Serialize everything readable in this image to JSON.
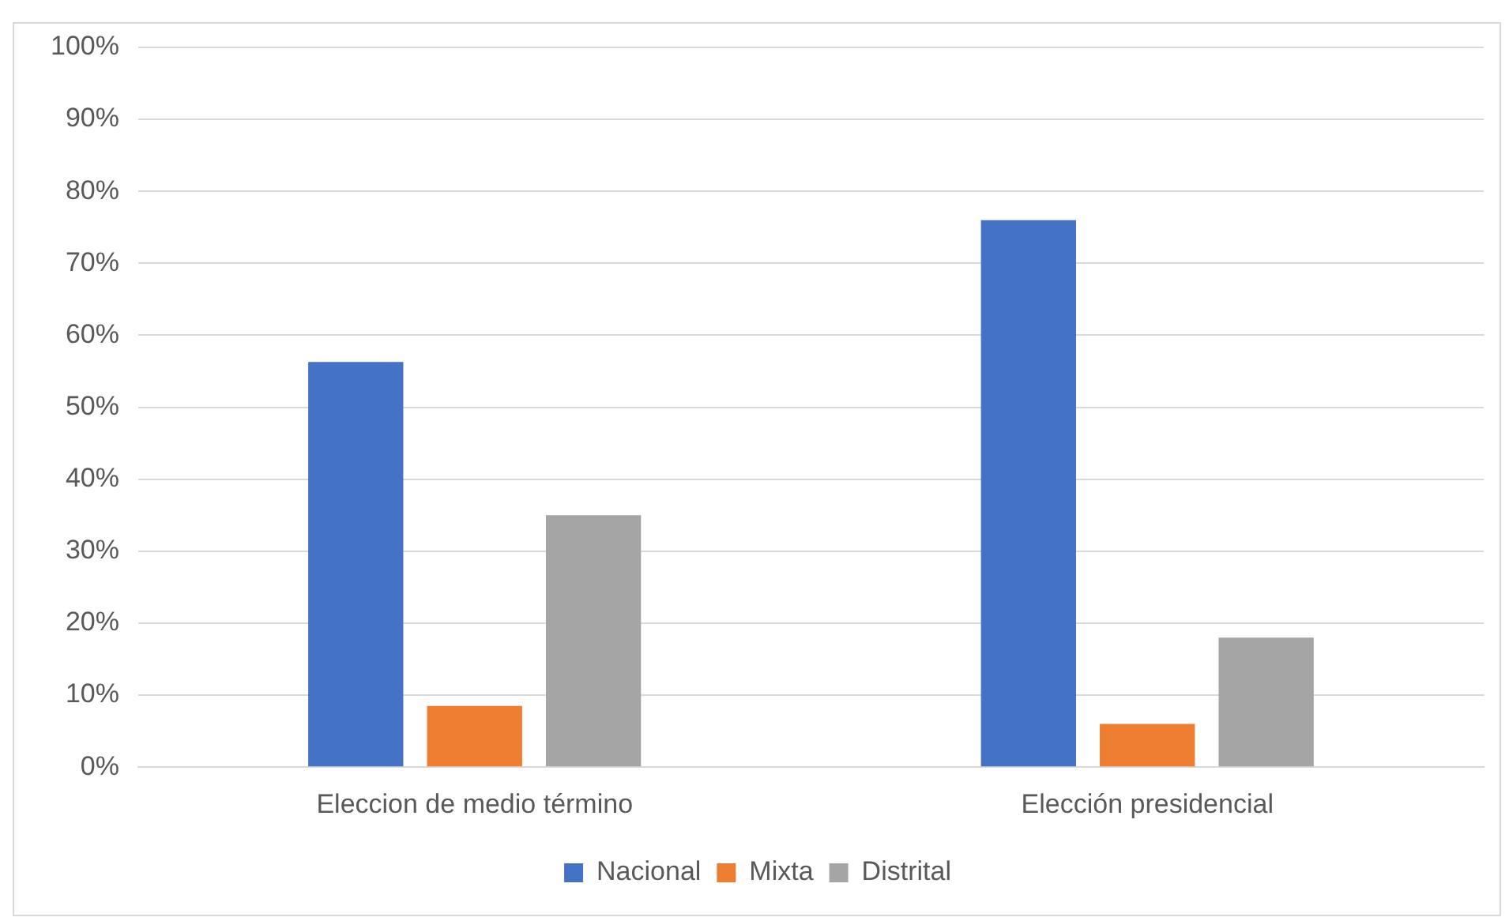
{
  "chart_data": {
    "type": "bar",
    "categories": [
      "Eleccion de medio término",
      "Elección presidencial"
    ],
    "series": [
      {
        "name": "Nacional",
        "color": "#4472c4",
        "values": [
          56.3,
          76
        ]
      },
      {
        "name": "Mixta",
        "color": "#ed7d31",
        "values": [
          8.5,
          6
        ]
      },
      {
        "name": "Distrital",
        "color": "#a5a5a5",
        "values": [
          35,
          18
        ]
      }
    ],
    "ylim": [
      0,
      100
    ],
    "yticks": [
      {
        "value": 0,
        "label": "0%"
      },
      {
        "value": 10,
        "label": "10%"
      },
      {
        "value": 20,
        "label": "20%"
      },
      {
        "value": 30,
        "label": "30%"
      },
      {
        "value": 40,
        "label": "40%"
      },
      {
        "value": 50,
        "label": "50%"
      },
      {
        "value": 60,
        "label": "60%"
      },
      {
        "value": 70,
        "label": "70%"
      },
      {
        "value": 80,
        "label": "80%"
      },
      {
        "value": 90,
        "label": "90%"
      },
      {
        "value": 100,
        "label": "100%"
      }
    ],
    "grid": "y",
    "legend": "bottom"
  }
}
